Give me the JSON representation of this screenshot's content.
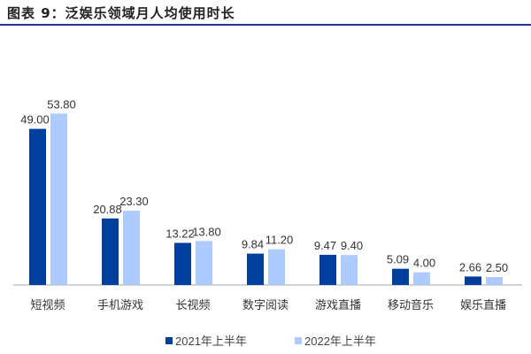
{
  "title": "图表 9：泛娱乐领域月人均使用时长",
  "chart_data": {
    "type": "bar",
    "title": "图表 9：泛娱乐领域月人均使用时长",
    "categories": [
      "短视频",
      "手机游戏",
      "长视频",
      "数字阅读",
      "游戏直播",
      "移动音乐",
      "娱乐直播"
    ],
    "series": [
      {
        "name": "2021年上半年",
        "color": "#003E9B",
        "values": [
          49.0,
          20.88,
          13.22,
          9.84,
          9.47,
          5.09,
          2.66
        ]
      },
      {
        "name": "2022年上半年",
        "color": "#ADCBFF",
        "values": [
          53.8,
          23.3,
          13.8,
          11.2,
          9.4,
          4.0,
          2.5
        ]
      }
    ],
    "ylim": [
      0,
      55
    ],
    "grid": false,
    "legend": "bottom",
    "data_labels": true
  }
}
